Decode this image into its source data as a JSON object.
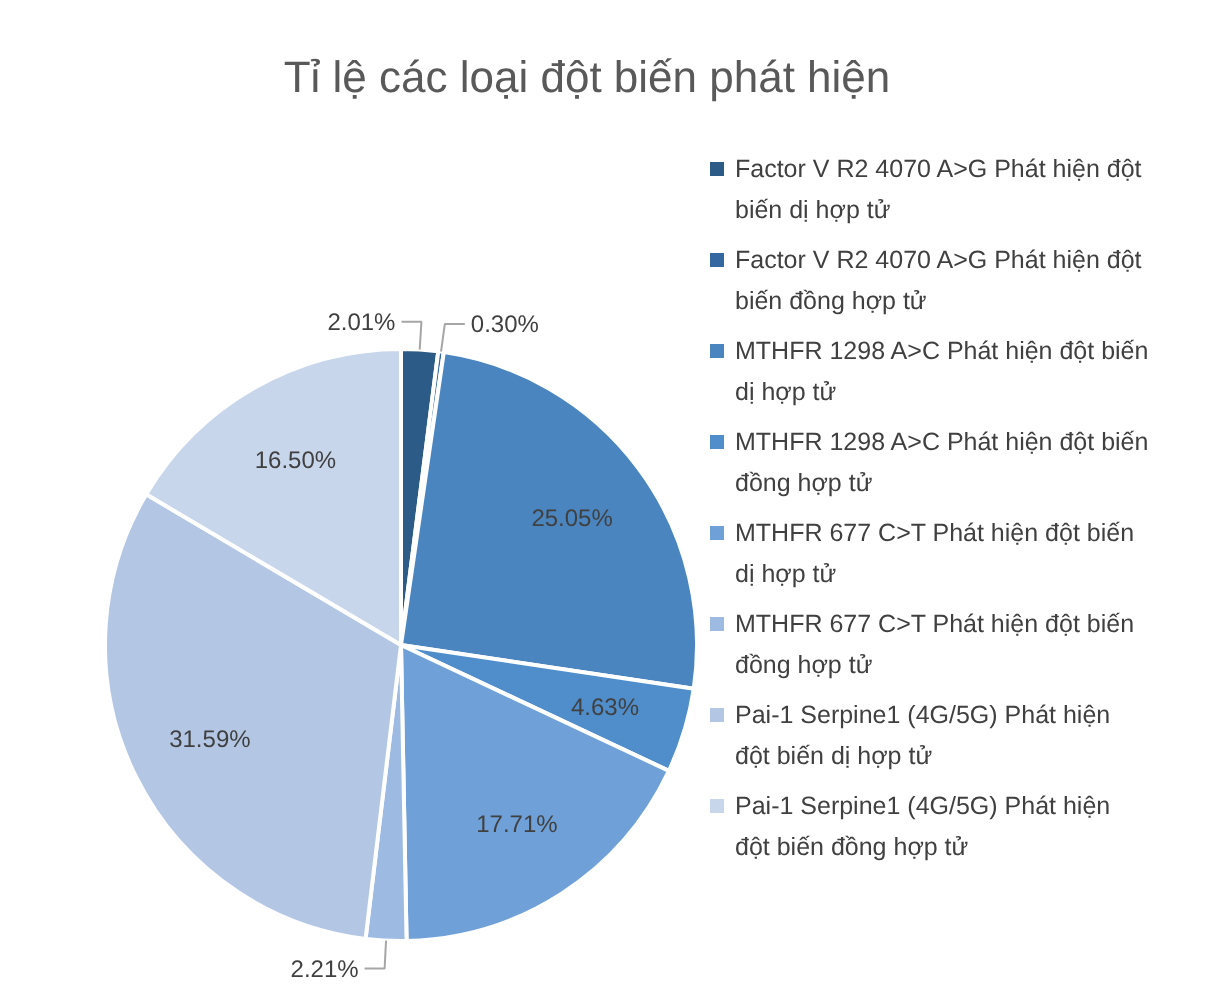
{
  "chart_data": {
    "type": "pie",
    "title": "Tỉ lệ các loại đột biến phát hiện",
    "categories": [
      "Factor V R2 4070 A>G Phát hiện đột biến dị hợp tử",
      "Factor V R2 4070 A>G Phát hiện đột biến đồng hợp tử",
      "MTHFR 1298 A>C Phát hiện đột biến dị hợp tử",
      "MTHFR 1298 A>C Phát hiện đột biến đồng hợp tử",
      "MTHFR 677 C>T Phát hiện đột biến dị hợp tử",
      "MTHFR 677 C>T Phát hiện đột biến đồng hợp tử",
      "Pai-1 Serpine1 (4G/5G) Phát hiện đột biến dị hợp tử",
      "Pai-1 Serpine1 (4G/5G) Phát hiện đột biến đồng hợp tử"
    ],
    "values": [
      2.01,
      0.3,
      25.05,
      4.63,
      17.71,
      2.21,
      31.59,
      16.5
    ],
    "value_labels": [
      "2.01%",
      "0.30%",
      "25.05%",
      "4.63%",
      "17.71%",
      "2.21%",
      "31.59%",
      "16.50%"
    ],
    "colors": [
      "#2d5b87",
      "#3468a0",
      "#4a85bf",
      "#4f8ecb",
      "#6fa1d8",
      "#9dbbe2",
      "#b3c7e5",
      "#c8d6ec"
    ],
    "legend": "right"
  }
}
